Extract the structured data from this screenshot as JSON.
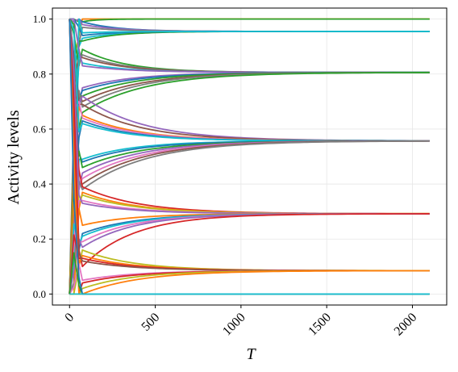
{
  "chart_data": {
    "type": "line",
    "title": "",
    "xlabel": "T",
    "ylabel": "Activity levels",
    "xlim": [
      -100,
      2200
    ],
    "ylim": [
      -0.04,
      1.04
    ],
    "xticks": [
      0,
      500,
      1000,
      1500,
      2000
    ],
    "xtick_labels": [
      "0",
      "500",
      "1000",
      "1500",
      "2000"
    ],
    "yticks": [
      0.0,
      0.2,
      0.4,
      0.6,
      0.8,
      1.0
    ],
    "ytick_labels": [
      "0.0",
      "0.2",
      "0.4",
      "0.6",
      "0.8",
      "1.0"
    ],
    "grid": true,
    "legend": "none",
    "x_range": [
      0,
      2100
    ],
    "converged_levels": [
      0.0,
      0.085,
      0.292,
      0.557,
      0.806,
      0.955,
      1.0
    ],
    "palette": [
      "#1f77b4",
      "#ff7f0e",
      "#2ca02c",
      "#d62728",
      "#9467bd",
      "#8c564b",
      "#e377c2",
      "#7f7f7f",
      "#bcbd22",
      "#17becf"
    ],
    "series": [
      {
        "start": 1.0,
        "end": 1.0,
        "color": "#bcbd22",
        "tau": 60
      },
      {
        "start": 1.0,
        "end": 1.0,
        "color": "#ff7f0e",
        "tau": 60
      },
      {
        "start": 0.99,
        "end": 1.0,
        "color": "#2ca02c",
        "tau": 80
      },
      {
        "start": 0.99,
        "end": 0.955,
        "color": "#1f77b4",
        "tau": 200
      },
      {
        "start": 0.98,
        "end": 0.955,
        "color": "#9467bd",
        "tau": 220
      },
      {
        "start": 0.97,
        "end": 0.955,
        "color": "#7f7f7f",
        "tau": 220
      },
      {
        "start": 0.93,
        "end": 0.955,
        "color": "#17becf",
        "tau": 200
      },
      {
        "start": 0.92,
        "end": 0.955,
        "color": "#2ca02c",
        "tau": 200
      },
      {
        "start": 0.94,
        "end": 0.955,
        "color": "#1f77b4",
        "tau": 180
      },
      {
        "start": 0.95,
        "end": 0.955,
        "color": "#17becf",
        "tau": 180
      },
      {
        "start": 0.89,
        "end": 0.806,
        "color": "#2ca02c",
        "tau": 250
      },
      {
        "start": 0.87,
        "end": 0.806,
        "color": "#7f7f7f",
        "tau": 260
      },
      {
        "start": 0.86,
        "end": 0.806,
        "color": "#8c564b",
        "tau": 260
      },
      {
        "start": 0.84,
        "end": 0.806,
        "color": "#17becf",
        "tau": 260
      },
      {
        "start": 0.83,
        "end": 0.806,
        "color": "#9467bd",
        "tau": 280
      },
      {
        "start": 0.75,
        "end": 0.806,
        "color": "#9467bd",
        "tau": 300
      },
      {
        "start": 0.74,
        "end": 0.806,
        "color": "#1f77b4",
        "tau": 320
      },
      {
        "start": 0.72,
        "end": 0.806,
        "color": "#2ca02c",
        "tau": 320
      },
      {
        "start": 0.7,
        "end": 0.806,
        "color": "#8c564b",
        "tau": 340
      },
      {
        "start": 0.68,
        "end": 0.806,
        "color": "#7f7f7f",
        "tau": 340
      },
      {
        "start": 0.66,
        "end": 0.806,
        "color": "#2ca02c",
        "tau": 360
      },
      {
        "start": 0.72,
        "end": 0.557,
        "color": "#9467bd",
        "tau": 350
      },
      {
        "start": 0.69,
        "end": 0.557,
        "color": "#8c564b",
        "tau": 340
      },
      {
        "start": 0.65,
        "end": 0.557,
        "color": "#ff7f0e",
        "tau": 320
      },
      {
        "start": 0.64,
        "end": 0.557,
        "color": "#e377c2",
        "tau": 320
      },
      {
        "start": 0.63,
        "end": 0.557,
        "color": "#1f77b4",
        "tau": 300
      },
      {
        "start": 0.62,
        "end": 0.557,
        "color": "#17becf",
        "tau": 300
      },
      {
        "start": 0.49,
        "end": 0.557,
        "color": "#17becf",
        "tau": 300
      },
      {
        "start": 0.48,
        "end": 0.557,
        "color": "#1f77b4",
        "tau": 320
      },
      {
        "start": 0.46,
        "end": 0.557,
        "color": "#2ca02c",
        "tau": 340
      },
      {
        "start": 0.44,
        "end": 0.557,
        "color": "#9467bd",
        "tau": 350
      },
      {
        "start": 0.42,
        "end": 0.557,
        "color": "#e377c2",
        "tau": 360
      },
      {
        "start": 0.4,
        "end": 0.557,
        "color": "#8c564b",
        "tau": 360
      },
      {
        "start": 0.38,
        "end": 0.557,
        "color": "#7f7f7f",
        "tau": 370
      },
      {
        "start": 0.39,
        "end": 0.292,
        "color": "#d62728",
        "tau": 330
      },
      {
        "start": 0.37,
        "end": 0.292,
        "color": "#ff7f0e",
        "tau": 320
      },
      {
        "start": 0.36,
        "end": 0.292,
        "color": "#bcbd22",
        "tau": 320
      },
      {
        "start": 0.34,
        "end": 0.292,
        "color": "#e377c2",
        "tau": 300
      },
      {
        "start": 0.33,
        "end": 0.292,
        "color": "#9467bd",
        "tau": 300
      },
      {
        "start": 0.25,
        "end": 0.292,
        "color": "#ff7f0e",
        "tau": 280
      },
      {
        "start": 0.22,
        "end": 0.292,
        "color": "#1f77b4",
        "tau": 300
      },
      {
        "start": 0.21,
        "end": 0.292,
        "color": "#17becf",
        "tau": 300
      },
      {
        "start": 0.19,
        "end": 0.292,
        "color": "#e377c2",
        "tau": 300
      },
      {
        "start": 0.17,
        "end": 0.292,
        "color": "#9467bd",
        "tau": 300
      },
      {
        "start": 0.1,
        "end": 0.292,
        "color": "#d62728",
        "tau": 300
      },
      {
        "start": 0.16,
        "end": 0.085,
        "color": "#bcbd22",
        "tau": 300
      },
      {
        "start": 0.14,
        "end": 0.085,
        "color": "#ff7f0e",
        "tau": 300
      },
      {
        "start": 0.13,
        "end": 0.085,
        "color": "#d62728",
        "tau": 300
      },
      {
        "start": 0.12,
        "end": 0.085,
        "color": "#8c564b",
        "tau": 300
      },
      {
        "start": 0.05,
        "end": 0.085,
        "color": "#e377c2",
        "tau": 300
      },
      {
        "start": 0.04,
        "end": 0.085,
        "color": "#d62728",
        "tau": 300
      },
      {
        "start": 0.02,
        "end": 0.085,
        "color": "#bcbd22",
        "tau": 300
      },
      {
        "start": 0.0,
        "end": 0.085,
        "color": "#ff7f0e",
        "tau": 330
      },
      {
        "start": 0.0,
        "end": 0.0,
        "color": "#2ca02c",
        "tau": 60
      },
      {
        "start": 0.0,
        "end": 0.0,
        "color": "#1f77b4",
        "tau": 60
      },
      {
        "start": 0.0,
        "end": 0.0,
        "color": "#17becf",
        "tau": 60
      }
    ]
  }
}
